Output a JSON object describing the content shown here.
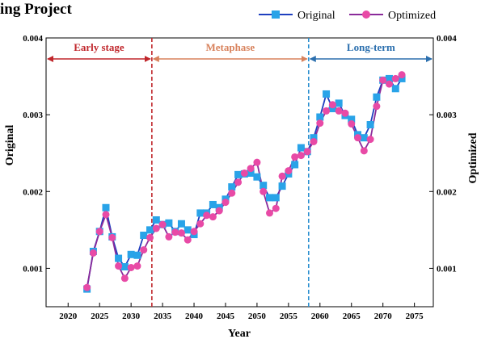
{
  "chart_data": {
    "type": "line",
    "title": "ing Project",
    "xlabel": "Year",
    "ylabel_left": "Original",
    "ylabel_right": "Optimized",
    "xlim": [
      2016.5,
      2078
    ],
    "ylim": [
      0.0005,
      0.004
    ],
    "x_ticks": [
      2020,
      2025,
      2030,
      2035,
      2040,
      2045,
      2050,
      2055,
      2060,
      2065,
      2070,
      2075
    ],
    "y_ticks": [
      0.001,
      0.002,
      0.003,
      0.004
    ],
    "x_tick_labels": [
      "2020",
      "2025",
      "2030",
      "2035",
      "2040",
      "2045",
      "2050",
      "2055",
      "2060",
      "2065",
      "2070",
      "2075"
    ],
    "y_tick_labels": [
      "0.001",
      "0.002",
      "0.003",
      "0.004"
    ],
    "legend_position": "top-right",
    "grid": false,
    "x": [
      2023,
      2024,
      2025,
      2026,
      2027,
      2028,
      2029,
      2030,
      2031,
      2032,
      2033,
      2034,
      2035,
      2036,
      2037,
      2038,
      2039,
      2040,
      2041,
      2042,
      2043,
      2044,
      2045,
      2046,
      2047,
      2048,
      2049,
      2050,
      2051,
      2052,
      2053,
      2054,
      2055,
      2056,
      2057,
      2058,
      2059,
      2060,
      2061,
      2062,
      2063,
      2064,
      2065,
      2066,
      2067,
      2068,
      2069,
      2070,
      2071,
      2072,
      2073
    ],
    "series": [
      {
        "name": "Original",
        "marker": "square",
        "color": "#29a3e8",
        "line_color": "#1f3fbf",
        "values": [
          0.00073,
          0.00122,
          0.00148,
          0.00179,
          0.00141,
          0.00113,
          0.00102,
          0.00118,
          0.00117,
          0.00143,
          0.0015,
          0.00163,
          0.00157,
          0.00159,
          0.00148,
          0.00158,
          0.0015,
          0.00144,
          0.00172,
          0.00172,
          0.00183,
          0.00179,
          0.0019,
          0.00206,
          0.00222,
          0.00223,
          0.00224,
          0.00219,
          0.00208,
          0.00192,
          0.00192,
          0.00207,
          0.00223,
          0.00235,
          0.00257,
          0.00252,
          0.0027,
          0.00297,
          0.00327,
          0.00308,
          0.00315,
          0.00299,
          0.00294,
          0.00274,
          0.0027,
          0.00287,
          0.00323,
          0.00345,
          0.00347,
          0.00334,
          0.00347
        ]
      },
      {
        "name": "Optimized",
        "marker": "circle",
        "color": "#e84aa6",
        "line_color": "#8a2a9a",
        "values": [
          0.00075,
          0.0012,
          0.00148,
          0.0017,
          0.0014,
          0.00103,
          0.00087,
          0.00101,
          0.00103,
          0.00124,
          0.0014,
          0.00152,
          0.00157,
          0.00141,
          0.00147,
          0.00146,
          0.00137,
          0.00148,
          0.00158,
          0.00169,
          0.00167,
          0.00175,
          0.00186,
          0.00198,
          0.00212,
          0.00224,
          0.0023,
          0.00238,
          0.002,
          0.00172,
          0.00178,
          0.0022,
          0.00227,
          0.00245,
          0.00247,
          0.00252,
          0.00265,
          0.00289,
          0.00305,
          0.00313,
          0.00305,
          0.00302,
          0.00288,
          0.0027,
          0.00253,
          0.00268,
          0.00311,
          0.00345,
          0.0034,
          0.00347,
          0.00352
        ]
      }
    ],
    "phases": [
      {
        "label": "Early stage",
        "x_start": 2016.5,
        "x_end": 2033.3,
        "color": "#c0262b"
      },
      {
        "label": "Metaphase",
        "x_start": 2033.3,
        "x_end": 2058.2,
        "color": "#d8825c"
      },
      {
        "label": "Long-term",
        "x_start": 2058.2,
        "x_end": 2078,
        "color": "#2b6fae"
      }
    ],
    "phase_dividers": [
      {
        "x": 2033.3,
        "color": "#c0262b"
      },
      {
        "x": 2058.2,
        "color": "#2b8fd0"
      }
    ]
  }
}
